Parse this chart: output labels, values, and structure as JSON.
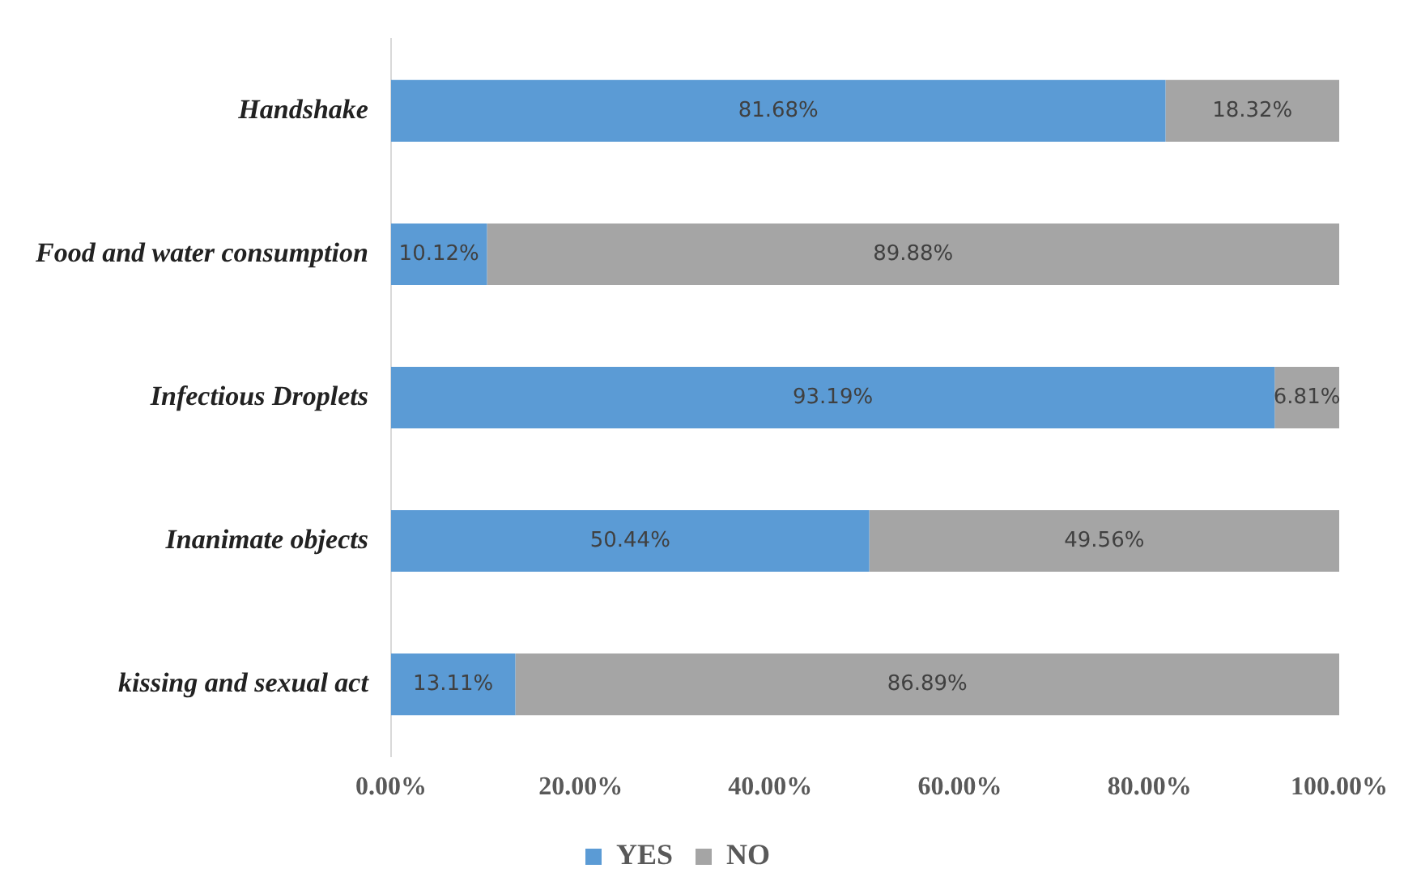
{
  "chart_data": {
    "type": "bar",
    "orientation": "horizontal",
    "stacked": true,
    "categories": [
      "Handshake",
      "Food and water consumption",
      "Infectious Droplets",
      "Inanimate objects",
      "kissing and sexual act"
    ],
    "series": [
      {
        "name": "YES",
        "color": "#5b9bd5",
        "values": [
          81.68,
          10.12,
          93.19,
          50.44,
          13.11
        ],
        "value_labels": [
          "81.68%",
          "10.12%",
          "93.19%",
          "50.44%",
          "13.11%"
        ]
      },
      {
        "name": "NO",
        "color": "#a5a5a5",
        "values": [
          18.32,
          89.88,
          6.81,
          49.56,
          86.89
        ],
        "value_labels": [
          "18.32%",
          "89.88%",
          "6.81%",
          "49.56%",
          "86.89%"
        ]
      }
    ],
    "xlim": [
      0,
      100
    ],
    "xticks": [
      {
        "value": 0,
        "label": "0.00%"
      },
      {
        "value": 20,
        "label": "20.00%"
      },
      {
        "value": 40,
        "label": "40.00%"
      },
      {
        "value": 60,
        "label": "60.00%"
      },
      {
        "value": 80,
        "label": "80.00%"
      },
      {
        "value": 100,
        "label": "100.00%"
      }
    ],
    "grid": false,
    "legend": "bottom"
  }
}
